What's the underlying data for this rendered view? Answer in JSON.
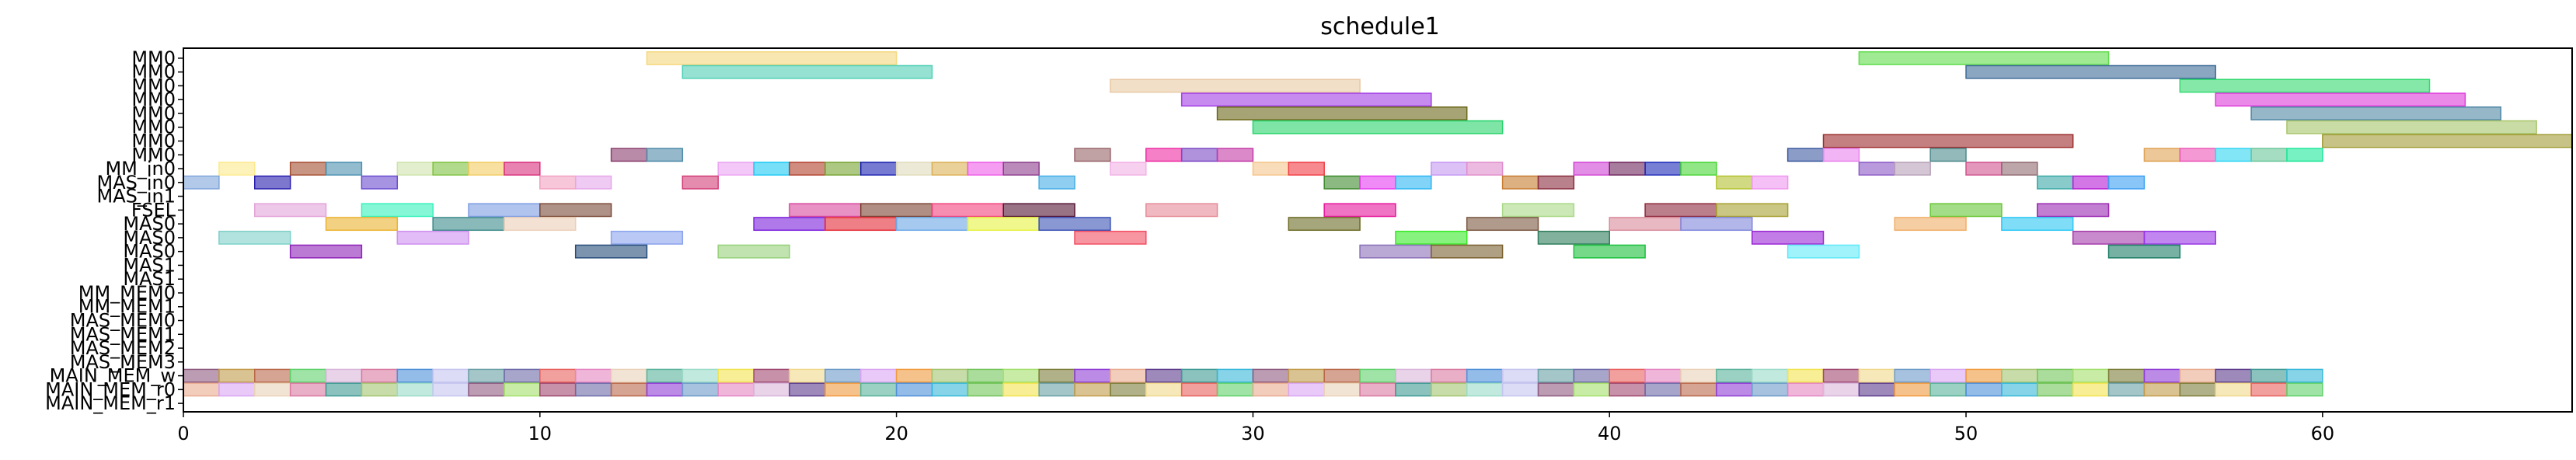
{
  "chart_data": {
    "type": "gantt",
    "title": "schedule1",
    "xlabel": "",
    "ylabel": "",
    "xlim": [
      0,
      67
    ],
    "x_ticks": [
      0,
      10,
      20,
      30,
      40,
      50,
      60
    ],
    "grid": false,
    "rows": [
      "MM0",
      "MM0",
      "MM0",
      "MM0",
      "MM0",
      "MM0",
      "MM0",
      "MM0",
      "MM_in0",
      "MAS_in0",
      "MAS_in1",
      "FSEL",
      "MAS0",
      "MAS0",
      "MAS0",
      "MAS1",
      "MAS1",
      "MM_MEM0",
      "MM_MEM1",
      "MAS_MEM0",
      "MAS_MEM1",
      "MAS_MEM2",
      "MAS_MEM3",
      "MAIN_MEM_w",
      "MAIN_MEM_r0",
      "MAIN_MEM_r1"
    ],
    "tasks": [
      {
        "row": 0,
        "start": 13,
        "end": 20,
        "color": "#f5d77e"
      },
      {
        "row": 0,
        "start": 47,
        "end": 54,
        "color": "#5fdc4b"
      },
      {
        "row": 1,
        "start": 14,
        "end": 21,
        "color": "#4fcfb5"
      },
      {
        "row": 1,
        "start": 50,
        "end": 57,
        "color": "#3d6b97"
      },
      {
        "row": 2,
        "start": 26,
        "end": 33,
        "color": "#e8c9a4"
      },
      {
        "row": 2,
        "start": 56,
        "end": 63,
        "color": "#33d970"
      },
      {
        "row": 3,
        "start": 28,
        "end": 35,
        "color": "#a23de4"
      },
      {
        "row": 3,
        "start": 57,
        "end": 64,
        "color": "#de3bd9"
      },
      {
        "row": 4,
        "start": 29,
        "end": 36,
        "color": "#6b6717"
      },
      {
        "row": 4,
        "start": 58,
        "end": 65,
        "color": "#4f87a4"
      },
      {
        "row": 5,
        "start": 30,
        "end": 37,
        "color": "#28d36b"
      },
      {
        "row": 5,
        "start": 59,
        "end": 66,
        "color": "#a7c56a"
      },
      {
        "row": 6,
        "start": 46,
        "end": 53,
        "color": "#9c2b2b"
      },
      {
        "row": 6,
        "start": 60,
        "end": 67,
        "color": "#a19b35"
      },
      {
        "row": 7,
        "start": 12,
        "end": 13,
        "color": "#8b3e6e"
      },
      {
        "row": 7,
        "start": 13,
        "end": 14,
        "color": "#4f8aa8"
      },
      {
        "row": 7,
        "start": 25,
        "end": 26,
        "color": "#986468"
      },
      {
        "row": 7,
        "start": 27,
        "end": 28,
        "color": "#ee2ba2"
      },
      {
        "row": 7,
        "start": 28,
        "end": 29,
        "color": "#7a48c4"
      },
      {
        "row": 7,
        "start": 29,
        "end": 30,
        "color": "#c43ba6"
      },
      {
        "row": 7,
        "start": 45,
        "end": 46,
        "color": "#3d5aa0"
      },
      {
        "row": 7,
        "start": 46,
        "end": 47,
        "color": "#ea82ef"
      },
      {
        "row": 7,
        "start": 49,
        "end": 50,
        "color": "#4d8a8c"
      },
      {
        "row": 7,
        "start": 55,
        "end": 56,
        "color": "#dfa154"
      },
      {
        "row": 7,
        "start": 56,
        "end": 57,
        "color": "#ec55b6"
      },
      {
        "row": 7,
        "start": 57,
        "end": 58,
        "color": "#2fd6f2"
      },
      {
        "row": 7,
        "start": 58,
        "end": 59,
        "color": "#69c79a"
      },
      {
        "row": 7,
        "start": 59,
        "end": 60,
        "color": "#1de89a"
      },
      {
        "row": 8,
        "start": 1,
        "end": 2,
        "color": "#fde98e"
      },
      {
        "row": 8,
        "start": 3,
        "end": 4,
        "color": "#a54e30"
      },
      {
        "row": 8,
        "start": 4,
        "end": 5,
        "color": "#4b90af"
      },
      {
        "row": 8,
        "start": 6,
        "end": 7,
        "color": "#cfe3ab"
      },
      {
        "row": 8,
        "start": 7,
        "end": 8,
        "color": "#7fc23f"
      },
      {
        "row": 8,
        "start": 8,
        "end": 9,
        "color": "#f2cc61"
      },
      {
        "row": 8,
        "start": 9,
        "end": 10,
        "color": "#d82f7c"
      },
      {
        "row": 8,
        "start": 15,
        "end": 16,
        "color": "#eba3f3"
      },
      {
        "row": 8,
        "start": 16,
        "end": 17,
        "color": "#1dc9f4"
      },
      {
        "row": 8,
        "start": 17,
        "end": 18,
        "color": "#b3402c"
      },
      {
        "row": 8,
        "start": 18,
        "end": 19,
        "color": "#76a330"
      },
      {
        "row": 8,
        "start": 19,
        "end": 20,
        "color": "#1b21b1"
      },
      {
        "row": 8,
        "start": 20,
        "end": 21,
        "color": "#e0dbba"
      },
      {
        "row": 8,
        "start": 21,
        "end": 22,
        "color": "#dcb055"
      },
      {
        "row": 8,
        "start": 22,
        "end": 23,
        "color": "#ee5ce8"
      },
      {
        "row": 8,
        "start": 23,
        "end": 24,
        "color": "#8c3d8c"
      },
      {
        "row": 8,
        "start": 26,
        "end": 27,
        "color": "#f2b1e6"
      },
      {
        "row": 8,
        "start": 30,
        "end": 31,
        "color": "#f5c58a"
      },
      {
        "row": 8,
        "start": 31,
        "end": 32,
        "color": "#f03c44"
      },
      {
        "row": 8,
        "start": 35,
        "end": 36,
        "color": "#c497f2"
      },
      {
        "row": 8,
        "start": 36,
        "end": 37,
        "color": "#e08ccb"
      },
      {
        "row": 8,
        "start": 39,
        "end": 40,
        "color": "#d143d5"
      },
      {
        "row": 8,
        "start": 40,
        "end": 41,
        "color": "#6e255c"
      },
      {
        "row": 8,
        "start": 41,
        "end": 42,
        "color": "#1d2ab9"
      },
      {
        "row": 8,
        "start": 42,
        "end": 43,
        "color": "#47d535"
      },
      {
        "row": 8,
        "start": 47,
        "end": 48,
        "color": "#8a59c7"
      },
      {
        "row": 8,
        "start": 48,
        "end": 49,
        "color": "#b7a0b8"
      },
      {
        "row": 8,
        "start": 50,
        "end": 51,
        "color": "#d1528e"
      },
      {
        "row": 8,
        "start": 51,
        "end": 52,
        "color": "#8f6a72"
      },
      {
        "row": 9,
        "start": 0,
        "end": 1,
        "color": "#7fa5da"
      },
      {
        "row": 9,
        "start": 2,
        "end": 3,
        "color": "#281cae"
      },
      {
        "row": 9,
        "start": 5,
        "end": 6,
        "color": "#6b4bcf"
      },
      {
        "row": 9,
        "start": 10,
        "end": 11,
        "color": "#f2a1c0"
      },
      {
        "row": 9,
        "start": 11,
        "end": 12,
        "color": "#e5a6ea"
      },
      {
        "row": 9,
        "start": 14,
        "end": 15,
        "color": "#d23d78"
      },
      {
        "row": 9,
        "start": 24,
        "end": 25,
        "color": "#44aee6"
      },
      {
        "row": 9,
        "start": 32,
        "end": 33,
        "color": "#3d8a2d"
      },
      {
        "row": 9,
        "start": 33,
        "end": 34,
        "color": "#e53cf0"
      },
      {
        "row": 9,
        "start": 34,
        "end": 35,
        "color": "#2db6f2"
      },
      {
        "row": 9,
        "start": 37,
        "end": 38,
        "color": "#c77b2f"
      },
      {
        "row": 9,
        "start": 38,
        "end": 39,
        "color": "#8a2d3e"
      },
      {
        "row": 9,
        "start": 43,
        "end": 44,
        "color": "#b3c22f"
      },
      {
        "row": 9,
        "start": 44,
        "end": 45,
        "color": "#ee96ef"
      },
      {
        "row": 9,
        "start": 52,
        "end": 53,
        "color": "#39a9a6"
      },
      {
        "row": 9,
        "start": 53,
        "end": 54,
        "color": "#b51cd5"
      },
      {
        "row": 9,
        "start": 54,
        "end": 55,
        "color": "#3c9ef2"
      },
      {
        "row": 11,
        "start": 2,
        "end": 4,
        "color": "#e2a3d9"
      },
      {
        "row": 11,
        "start": 5,
        "end": 7,
        "color": "#36f1bb"
      },
      {
        "row": 11,
        "start": 8,
        "end": 10,
        "color": "#7d9ce2"
      },
      {
        "row": 11,
        "start": 10,
        "end": 12,
        "color": "#7a4a37"
      },
      {
        "row": 11,
        "start": 17,
        "end": 19,
        "color": "#d8479d"
      },
      {
        "row": 11,
        "start": 19,
        "end": 21,
        "color": "#7b4232"
      },
      {
        "row": 11,
        "start": 21,
        "end": 23,
        "color": "#f2427e"
      },
      {
        "row": 11,
        "start": 23,
        "end": 25,
        "color": "#531536"
      },
      {
        "row": 11,
        "start": 27,
        "end": 29,
        "color": "#e68a98"
      },
      {
        "row": 11,
        "start": 32,
        "end": 34,
        "color": "#e5179b"
      },
      {
        "row": 11,
        "start": 37,
        "end": 39,
        "color": "#a8d986"
      },
      {
        "row": 11,
        "start": 41,
        "end": 43,
        "color": "#8e2a3d"
      },
      {
        "row": 11,
        "start": 43,
        "end": 45,
        "color": "#a6a031"
      },
      {
        "row": 11,
        "start": 49,
        "end": 51,
        "color": "#68c737"
      },
      {
        "row": 11,
        "start": 52,
        "end": 54,
        "color": "#9a28b2"
      },
      {
        "row": 12,
        "start": 4,
        "end": 6,
        "color": "#ebb22f"
      },
      {
        "row": 12,
        "start": 7,
        "end": 9,
        "color": "#3c8a8a"
      },
      {
        "row": 12,
        "start": 9,
        "end": 11,
        "color": "#ebcfb8"
      },
      {
        "row": 12,
        "start": 16,
        "end": 18,
        "color": "#7a1fdc"
      },
      {
        "row": 12,
        "start": 18,
        "end": 20,
        "color": "#e52a36"
      },
      {
        "row": 12,
        "start": 20,
        "end": 22,
        "color": "#6ba7e5"
      },
      {
        "row": 12,
        "start": 22,
        "end": 24,
        "color": "#e6f23f"
      },
      {
        "row": 12,
        "start": 24,
        "end": 26,
        "color": "#3a51b4"
      },
      {
        "row": 12,
        "start": 31,
        "end": 33,
        "color": "#6b6a24"
      },
      {
        "row": 12,
        "start": 36,
        "end": 38,
        "color": "#7a5640"
      },
      {
        "row": 12,
        "start": 40,
        "end": 42,
        "color": "#d98a9a"
      },
      {
        "row": 12,
        "start": 42,
        "end": 44,
        "color": "#7f86db"
      },
      {
        "row": 12,
        "start": 48,
        "end": 50,
        "color": "#f0ad67"
      },
      {
        "row": 12,
        "start": 51,
        "end": 53,
        "color": "#2ac7f3"
      },
      {
        "row": 13,
        "start": 1,
        "end": 3,
        "color": "#7ed0c8"
      },
      {
        "row": 13,
        "start": 6,
        "end": 8,
        "color": "#cf8ff0"
      },
      {
        "row": 13,
        "start": 12,
        "end": 14,
        "color": "#8ba3ee"
      },
      {
        "row": 13,
        "start": 25,
        "end": 27,
        "color": "#f24e61"
      },
      {
        "row": 13,
        "start": 34,
        "end": 36,
        "color": "#37ea26"
      },
      {
        "row": 13,
        "start": 38,
        "end": 40,
        "color": "#2e7d5b"
      },
      {
        "row": 13,
        "start": 44,
        "end": 46,
        "color": "#9a27d5"
      },
      {
        "row": 13,
        "start": 53,
        "end": 55,
        "color": "#a53cab"
      },
      {
        "row": 13,
        "start": 55,
        "end": 57,
        "color": "#9735e5"
      },
      {
        "row": 14,
        "start": 3,
        "end": 5,
        "color": "#8e22b8"
      },
      {
        "row": 14,
        "start": 11,
        "end": 13,
        "color": "#264d7a"
      },
      {
        "row": 14,
        "start": 15,
        "end": 17,
        "color": "#96d07a"
      },
      {
        "row": 14,
        "start": 33,
        "end": 35,
        "color": "#8a6fb8"
      },
      {
        "row": 14,
        "start": 35,
        "end": 37,
        "color": "#7a6030"
      },
      {
        "row": 14,
        "start": 39,
        "end": 41,
        "color": "#1bc03b"
      },
      {
        "row": 14,
        "start": 45,
        "end": 47,
        "color": "#60eaf8"
      },
      {
        "row": 14,
        "start": 54,
        "end": 56,
        "color": "#1d7d66"
      }
    ],
    "memory_rows": {
      "main_mem_w_row": 23,
      "main_mem_r0_row": 24,
      "main_mem_r1_row": 25,
      "main_mem_w_end": 60,
      "main_mem_r0_end": 60,
      "palette": [
        "#a4c46f",
        "#d8b6da",
        "#f0d88b",
        "#8d5a7e",
        "#59b29a",
        "#e9ab8f",
        "#6c6aa7",
        "#72c45a",
        "#d979a0",
        "#6c9ac8",
        "#c29b4a",
        "#9adbc7",
        "#5c3c8c",
        "#e8615d",
        "#a3e06b",
        "#4d8fd9",
        "#d9a5f1",
        "#b9674a",
        "#f2e34f",
        "#3d9a92",
        "#e585c1",
        "#7d7d3a",
        "#c5c5f0",
        "#f09a3d",
        "#5fd16a",
        "#a04870",
        "#37b8d9",
        "#e9d2b8",
        "#8f3dd6",
        "#69a0a5"
      ]
    }
  }
}
